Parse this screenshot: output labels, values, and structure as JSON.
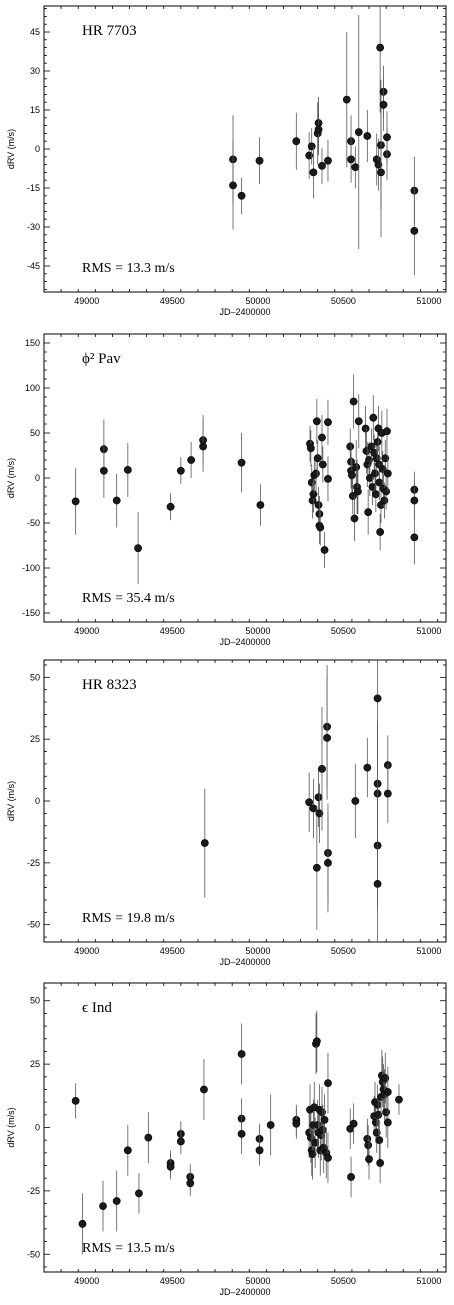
{
  "chart_data": [
    {
      "type": "scatter",
      "title": "HR  7703",
      "annotation": "RMS  =  13.3  m/s",
      "xlabel": "JD–2400000",
      "ylabel": "dRV  (m/s)",
      "xlim": [
        48750,
        51100
      ],
      "ylim": [
        -55,
        55
      ],
      "xticks": [
        49000,
        49500,
        50000,
        50500,
        51000
      ],
      "yticks": [
        -45,
        -30,
        -15,
        0,
        15,
        30,
        45
      ],
      "points": [
        {
          "x": 49855,
          "y": -4,
          "err": 17
        },
        {
          "x": 49855,
          "y": -14,
          "err": 17
        },
        {
          "x": 49905,
          "y": -18,
          "err": 7
        },
        {
          "x": 50010,
          "y": -4.5,
          "err": 9
        },
        {
          "x": 50225,
          "y": 3,
          "err": 11
        },
        {
          "x": 50300,
          "y": -2.5,
          "err": 9
        },
        {
          "x": 50315,
          "y": 1,
          "err": 7
        },
        {
          "x": 50325,
          "y": -9,
          "err": 10
        },
        {
          "x": 50350,
          "y": 6,
          "err": 12
        },
        {
          "x": 50355,
          "y": 10,
          "err": 10
        },
        {
          "x": 50355,
          "y": 7.5,
          "err": 10
        },
        {
          "x": 50375,
          "y": -6.5,
          "err": 7
        },
        {
          "x": 50410,
          "y": -4.5,
          "err": 8
        },
        {
          "x": 50520,
          "y": 19,
          "err": 26
        },
        {
          "x": 50545,
          "y": 3,
          "err": 10
        },
        {
          "x": 50545,
          "y": -4,
          "err": 9
        },
        {
          "x": 50570,
          "y": -7,
          "err": 8
        },
        {
          "x": 50590,
          "y": 6.5,
          "err": 45
        },
        {
          "x": 50640,
          "y": 5,
          "err": 10
        },
        {
          "x": 50695,
          "y": -4,
          "err": 10
        },
        {
          "x": 50705,
          "y": -6,
          "err": 10
        },
        {
          "x": 50715,
          "y": 39,
          "err": 25
        },
        {
          "x": 50720,
          "y": 1.5,
          "err": 25
        },
        {
          "x": 50720,
          "y": -9,
          "err": 25
        },
        {
          "x": 50735,
          "y": 22,
          "err": 10
        },
        {
          "x": 50735,
          "y": 17,
          "err": 10
        },
        {
          "x": 50755,
          "y": -2,
          "err": 10
        },
        {
          "x": 50755,
          "y": 4.5,
          "err": 10
        },
        {
          "x": 50915,
          "y": -16,
          "err": 13
        },
        {
          "x": 50915,
          "y": -31.5,
          "err": 17
        }
      ]
    },
    {
      "type": "scatter",
      "title": "ϕ² Pav",
      "annotation": "RMS  =  35.4  m/s",
      "xlabel": "JD–2400000",
      "ylabel": "dRV  (m/s)",
      "xlim": [
        48750,
        51100
      ],
      "ylim": [
        -160,
        160
      ],
      "xticks": [
        49000,
        49500,
        50000,
        50500,
        51000
      ],
      "yticks": [
        -150,
        -100,
        -50,
        0,
        50,
        100,
        150
      ],
      "points": [
        {
          "x": 48935,
          "y": -26,
          "err": 37
        },
        {
          "x": 49100,
          "y": 32,
          "err": 33
        },
        {
          "x": 49100,
          "y": 8,
          "err": 30
        },
        {
          "x": 49175,
          "y": -25,
          "err": 30
        },
        {
          "x": 49240,
          "y": 9,
          "err": 30
        },
        {
          "x": 49300,
          "y": -78,
          "err": 40
        },
        {
          "x": 49490,
          "y": -32,
          "err": 15
        },
        {
          "x": 49550,
          "y": 8,
          "err": 15
        },
        {
          "x": 49610,
          "y": 20,
          "err": 20
        },
        {
          "x": 49680,
          "y": 42,
          "err": 28
        },
        {
          "x": 49680,
          "y": 35,
          "err": 28
        },
        {
          "x": 49905,
          "y": 17,
          "err": 33
        },
        {
          "x": 50015,
          "y": -30,
          "err": 23
        },
        {
          "x": 50305,
          "y": 38,
          "err": 20
        },
        {
          "x": 50310,
          "y": 33,
          "err": 20
        },
        {
          "x": 50315,
          "y": -5,
          "err": 20
        },
        {
          "x": 50320,
          "y": -25,
          "err": 20
        },
        {
          "x": 50325,
          "y": -18,
          "err": 20
        },
        {
          "x": 50330,
          "y": 3,
          "err": 20
        },
        {
          "x": 50340,
          "y": 5,
          "err": 20
        },
        {
          "x": 50345,
          "y": 63,
          "err": 25
        },
        {
          "x": 50350,
          "y": 22,
          "err": 20
        },
        {
          "x": 50355,
          "y": -30,
          "err": 20
        },
        {
          "x": 50360,
          "y": -40,
          "err": 20
        },
        {
          "x": 50360,
          "y": -53,
          "err": 20
        },
        {
          "x": 50365,
          "y": -55,
          "err": 20
        },
        {
          "x": 50375,
          "y": 45,
          "err": 25
        },
        {
          "x": 50380,
          "y": 15,
          "err": 20
        },
        {
          "x": 50390,
          "y": -80,
          "err": 20
        },
        {
          "x": 50410,
          "y": 62,
          "err": 25
        },
        {
          "x": 50410,
          "y": -1,
          "err": 25
        },
        {
          "x": 50540,
          "y": 35,
          "err": 20
        },
        {
          "x": 50545,
          "y": 18,
          "err": 20
        },
        {
          "x": 50545,
          "y": 8,
          "err": 20
        },
        {
          "x": 50550,
          "y": 3,
          "err": 20
        },
        {
          "x": 50555,
          "y": -20,
          "err": 20
        },
        {
          "x": 50560,
          "y": 85,
          "err": 30
        },
        {
          "x": 50565,
          "y": -45,
          "err": 25
        },
        {
          "x": 50575,
          "y": 12,
          "err": 30
        },
        {
          "x": 50580,
          "y": -10,
          "err": 30
        },
        {
          "x": 50585,
          "y": -15,
          "err": 25
        },
        {
          "x": 50590,
          "y": 63,
          "err": 30
        },
        {
          "x": 50630,
          "y": 55,
          "err": 25
        },
        {
          "x": 50635,
          "y": 30,
          "err": 25
        },
        {
          "x": 50640,
          "y": 15,
          "err": 25
        },
        {
          "x": 50645,
          "y": -38,
          "err": 25
        },
        {
          "x": 50650,
          "y": 20,
          "err": 20
        },
        {
          "x": 50655,
          "y": 0,
          "err": 20
        },
        {
          "x": 50665,
          "y": 35,
          "err": 20
        },
        {
          "x": 50670,
          "y": -10,
          "err": 20
        },
        {
          "x": 50675,
          "y": 67,
          "err": 25
        },
        {
          "x": 50680,
          "y": 28,
          "err": 20
        },
        {
          "x": 50685,
          "y": 5,
          "err": 20
        },
        {
          "x": 50690,
          "y": -18,
          "err": 20
        },
        {
          "x": 50695,
          "y": 22,
          "err": 20
        },
        {
          "x": 50700,
          "y": 40,
          "err": 20
        },
        {
          "x": 50705,
          "y": 55,
          "err": 25
        },
        {
          "x": 50710,
          "y": 15,
          "err": 20
        },
        {
          "x": 50710,
          "y": -5,
          "err": 20
        },
        {
          "x": 50715,
          "y": -60,
          "err": 20
        },
        {
          "x": 50720,
          "y": -30,
          "err": 20
        },
        {
          "x": 50725,
          "y": 50,
          "err": 25
        },
        {
          "x": 50730,
          "y": 10,
          "err": 20
        },
        {
          "x": 50735,
          "y": -12,
          "err": 20
        },
        {
          "x": 50740,
          "y": -25,
          "err": 20
        },
        {
          "x": 50745,
          "y": 22,
          "err": 20
        },
        {
          "x": 50750,
          "y": -15,
          "err": 20
        },
        {
          "x": 50755,
          "y": 52,
          "err": 25
        },
        {
          "x": 50760,
          "y": 5,
          "err": 20
        },
        {
          "x": 50915,
          "y": -13,
          "err": 20
        },
        {
          "x": 50915,
          "y": -25,
          "err": 20
        },
        {
          "x": 50915,
          "y": -66,
          "err": 30
        }
      ]
    },
    {
      "type": "scatter",
      "title": "HR  8323",
      "annotation": "RMS  =  19.8  m/s",
      "xlabel": "JD–2400000",
      "ylabel": "dRV  (m/s)",
      "xlim": [
        48750,
        51100
      ],
      "ylim": [
        -57,
        57
      ],
      "xticks": [
        49000,
        49500,
        50000,
        50500,
        51000
      ],
      "yticks": [
        -50,
        -25,
        0,
        25,
        50
      ],
      "points": [
        {
          "x": 49690,
          "y": -17,
          "err": 22
        },
        {
          "x": 50300,
          "y": -0.5,
          "err": 12
        },
        {
          "x": 50325,
          "y": -3,
          "err": 12
        },
        {
          "x": 50345,
          "y": -27,
          "err": 25
        },
        {
          "x": 50355,
          "y": 1.5,
          "err": 12
        },
        {
          "x": 50360,
          "y": -5,
          "err": 12
        },
        {
          "x": 50375,
          "y": 13,
          "err": 25
        },
        {
          "x": 50405,
          "y": 30,
          "err": 25
        },
        {
          "x": 50405,
          "y": 25.5,
          "err": 25
        },
        {
          "x": 50410,
          "y": -21,
          "err": 20
        },
        {
          "x": 50410,
          "y": -25,
          "err": 20
        },
        {
          "x": 50570,
          "y": 0,
          "err": 15
        },
        {
          "x": 50640,
          "y": 13.5,
          "err": 12
        },
        {
          "x": 50700,
          "y": 41.5,
          "err": 25
        },
        {
          "x": 50700,
          "y": 7,
          "err": 25
        },
        {
          "x": 50700,
          "y": 3,
          "err": 25
        },
        {
          "x": 50700,
          "y": -18,
          "err": 25
        },
        {
          "x": 50700,
          "y": -33.5,
          "err": 25
        },
        {
          "x": 50760,
          "y": 14.5,
          "err": 12
        },
        {
          "x": 50760,
          "y": 3,
          "err": 12
        }
      ]
    },
    {
      "type": "scatter",
      "title": "ϵ  Ind",
      "annotation": "RMS  =  13.5  m/s",
      "xlabel": "JD–2400000",
      "ylabel": "dRV  (m/s)",
      "xlim": [
        48750,
        51100
      ],
      "ylim": [
        -57,
        57
      ],
      "xticks": [
        49000,
        49500,
        50000,
        50500,
        51000
      ],
      "yticks": [
        -50,
        -25,
        0,
        25,
        50
      ],
      "points": [
        {
          "x": 48935,
          "y": 10.5,
          "err": 7
        },
        {
          "x": 48975,
          "y": -38,
          "err": 12
        },
        {
          "x": 49095,
          "y": -31,
          "err": 10
        },
        {
          "x": 49175,
          "y": -29,
          "err": 12
        },
        {
          "x": 49240,
          "y": -9,
          "err": 10
        },
        {
          "x": 49305,
          "y": -26,
          "err": 8
        },
        {
          "x": 49360,
          "y": -4,
          "err": 10
        },
        {
          "x": 49490,
          "y": -14,
          "err": 5
        },
        {
          "x": 49490,
          "y": -15.5,
          "err": 5
        },
        {
          "x": 49550,
          "y": -2.5,
          "err": 5
        },
        {
          "x": 49550,
          "y": -5.5,
          "err": 5
        },
        {
          "x": 49605,
          "y": -19.5,
          "err": 5
        },
        {
          "x": 49605,
          "y": -22,
          "err": 5
        },
        {
          "x": 49685,
          "y": 15,
          "err": 12
        },
        {
          "x": 49905,
          "y": 29,
          "err": 12
        },
        {
          "x": 49905,
          "y": 3.5,
          "err": 8
        },
        {
          "x": 49905,
          "y": -2.5,
          "err": 8
        },
        {
          "x": 50010,
          "y": -4.5,
          "err": 6
        },
        {
          "x": 50010,
          "y": -9,
          "err": 6
        },
        {
          "x": 50075,
          "y": 1,
          "err": 12
        },
        {
          "x": 50225,
          "y": 3,
          "err": 6
        },
        {
          "x": 50225,
          "y": 1.5,
          "err": 6
        },
        {
          "x": 50300,
          "y": -2,
          "err": 10
        },
        {
          "x": 50305,
          "y": 7,
          "err": 10
        },
        {
          "x": 50310,
          "y": -4,
          "err": 10
        },
        {
          "x": 50315,
          "y": -9,
          "err": 10
        },
        {
          "x": 50320,
          "y": -10.5,
          "err": 10
        },
        {
          "x": 50325,
          "y": 1,
          "err": 10
        },
        {
          "x": 50330,
          "y": 8,
          "err": 10
        },
        {
          "x": 50335,
          "y": -6,
          "err": 10
        },
        {
          "x": 50340,
          "y": 33,
          "err": 12
        },
        {
          "x": 50345,
          "y": 34,
          "err": 12
        },
        {
          "x": 50350,
          "y": 1,
          "err": 10
        },
        {
          "x": 50355,
          "y": -2,
          "err": 10
        },
        {
          "x": 50360,
          "y": 7,
          "err": 10
        },
        {
          "x": 50365,
          "y": -9,
          "err": 10
        },
        {
          "x": 50370,
          "y": -3,
          "err": 10
        },
        {
          "x": 50375,
          "y": 6,
          "err": 10
        },
        {
          "x": 50380,
          "y": -1,
          "err": 10
        },
        {
          "x": 50385,
          "y": -8,
          "err": 10
        },
        {
          "x": 50390,
          "y": 3,
          "err": 10
        },
        {
          "x": 50400,
          "y": -10,
          "err": 10
        },
        {
          "x": 50410,
          "y": 17.5,
          "err": 12
        },
        {
          "x": 50410,
          "y": -12,
          "err": 10
        },
        {
          "x": 50540,
          "y": -0.5,
          "err": 8
        },
        {
          "x": 50545,
          "y": -19.5,
          "err": 8
        },
        {
          "x": 50560,
          "y": 1.5,
          "err": 8
        },
        {
          "x": 50640,
          "y": -4.5,
          "err": 8
        },
        {
          "x": 50645,
          "y": -7,
          "err": 8
        },
        {
          "x": 50650,
          "y": -12.5,
          "err": 8
        },
        {
          "x": 50680,
          "y": 4.5,
          "err": 8
        },
        {
          "x": 50685,
          "y": 10,
          "err": 8
        },
        {
          "x": 50690,
          "y": 2,
          "err": 8
        },
        {
          "x": 50695,
          "y": -2,
          "err": 8
        },
        {
          "x": 50700,
          "y": 9,
          "err": 8
        },
        {
          "x": 50705,
          "y": 5,
          "err": 8
        },
        {
          "x": 50710,
          "y": -5,
          "err": 8
        },
        {
          "x": 50715,
          "y": -14,
          "err": 8
        },
        {
          "x": 50720,
          "y": 12,
          "err": 8
        },
        {
          "x": 50725,
          "y": 20.5,
          "err": 10
        },
        {
          "x": 50730,
          "y": 18,
          "err": 10
        },
        {
          "x": 50735,
          "y": 15,
          "err": 10
        },
        {
          "x": 50740,
          "y": 13,
          "err": 10
        },
        {
          "x": 50745,
          "y": 19.5,
          "err": 10
        },
        {
          "x": 50750,
          "y": 6,
          "err": 10
        },
        {
          "x": 50760,
          "y": 14,
          "err": 10
        },
        {
          "x": 50760,
          "y": 2,
          "err": 10
        },
        {
          "x": 50825,
          "y": 11,
          "err": 6
        }
      ]
    }
  ]
}
